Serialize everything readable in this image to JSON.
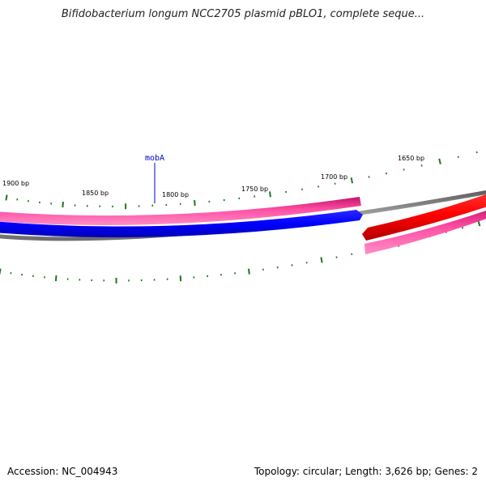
{
  "title": "Bifidobacterium longum NCC2705 plasmid pBLO1, complete seque...",
  "footer": {
    "accession_label": "Accession:",
    "accession": "NC_004943",
    "summary": "Topology: circular; Length: 3,626 bp; Genes: 2"
  },
  "map": {
    "tick_labels": [
      "1650 bp",
      "1700 bp",
      "1750 bp",
      "1800 bp",
      "1850 bp",
      "1900 bp"
    ],
    "gene_label": "mobA",
    "colors": {
      "tick": "#1a7a1a",
      "backbone": "#808080",
      "pink": "#ff2d8c",
      "blue": "#0000ff",
      "red": "#ff0000",
      "gene_label": "#0000cc"
    }
  }
}
